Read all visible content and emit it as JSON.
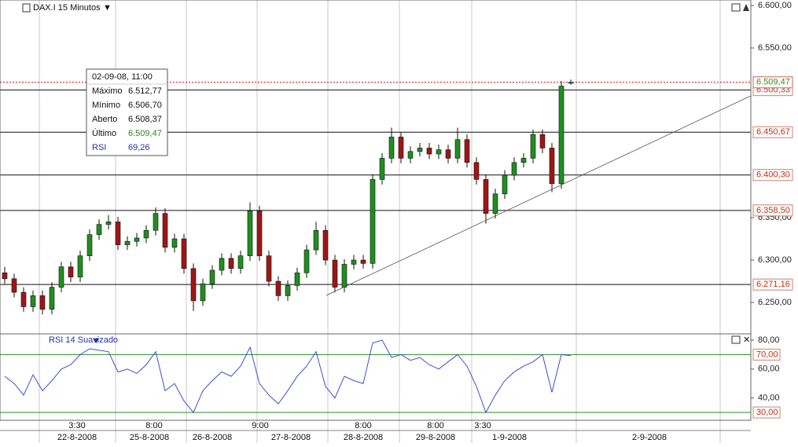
{
  "chart_data": {
    "type": "candlestick",
    "title": "DAX.I 15 Minutos",
    "ylim": [
      6213,
      6606.5
    ],
    "yticks": [
      {
        "value": 6600,
        "label": "6.600,00"
      },
      {
        "value": 6550,
        "label": "6.550,00"
      },
      {
        "value": 6350,
        "label": "6.350,00"
      },
      {
        "value": 6300,
        "label": "6.300,00"
      },
      {
        "value": 6250,
        "label": "6.250,00"
      }
    ],
    "levels": [
      {
        "value": 6500.33,
        "label": "6.500,33"
      },
      {
        "value": 6450.67,
        "label": "6.450,67"
      },
      {
        "value": 6400.3,
        "label": "6.400,30"
      },
      {
        "value": 6358.5,
        "label": "6.358,50"
      },
      {
        "value": 6271.16,
        "label": "6.271,16"
      }
    ],
    "last_price": {
      "value": 6509.47,
      "label": "6.509,47"
    },
    "up_color": "#1f8f1f",
    "down_color": "#a01515",
    "candles": [
      [
        6285,
        6292,
        6272,
        6278
      ],
      [
        6278,
        6284,
        6256,
        6262
      ],
      [
        6262,
        6268,
        6239,
        6245
      ],
      [
        6245,
        6264,
        6239,
        6258
      ],
      [
        6258,
        6264,
        6236,
        6242
      ],
      [
        6242,
        6274,
        6236,
        6268
      ],
      [
        6268,
        6298,
        6262,
        6292
      ],
      [
        6292,
        6298,
        6274,
        6280
      ],
      [
        6280,
        6311,
        6274,
        6305
      ],
      [
        6305,
        6336,
        6299,
        6330
      ],
      [
        6330,
        6348,
        6324,
        6342
      ],
      [
        6342,
        6353,
        6336,
        6345
      ],
      [
        6345,
        6351,
        6312,
        6318
      ],
      [
        6318,
        6328,
        6312,
        6322
      ],
      [
        6322,
        6332,
        6316,
        6326
      ],
      [
        6326,
        6341,
        6320,
        6335
      ],
      [
        6335,
        6362,
        6329,
        6355
      ],
      [
        6355,
        6361,
        6309,
        6315
      ],
      [
        6315,
        6331,
        6309,
        6325
      ],
      [
        6325,
        6331,
        6284,
        6290
      ],
      [
        6290,
        6296,
        6240,
        6252
      ],
      [
        6252,
        6278,
        6246,
        6272
      ],
      [
        6272,
        6294,
        6266,
        6288
      ],
      [
        6288,
        6308,
        6282,
        6302
      ],
      [
        6302,
        6308,
        6284,
        6290
      ],
      [
        6290,
        6311,
        6284,
        6305
      ],
      [
        6305,
        6368,
        6299,
        6358
      ],
      [
        6358,
        6364,
        6299,
        6305
      ],
      [
        6305,
        6311,
        6269,
        6275
      ],
      [
        6275,
        6281,
        6252,
        6258
      ],
      [
        6258,
        6276,
        6252,
        6270
      ],
      [
        6270,
        6291,
        6264,
        6285
      ],
      [
        6285,
        6318,
        6279,
        6312
      ],
      [
        6312,
        6345,
        6306,
        6335
      ],
      [
        6335,
        6341,
        6294,
        6300
      ],
      [
        6300,
        6306,
        6262,
        6268
      ],
      [
        6268,
        6301,
        6262,
        6295
      ],
      [
        6295,
        6306,
        6289,
        6300
      ],
      [
        6300,
        6306,
        6290,
        6296
      ],
      [
        6296,
        6401,
        6290,
        6395
      ],
      [
        6395,
        6426,
        6389,
        6420
      ],
      [
        6420,
        6456,
        6414,
        6445
      ],
      [
        6445,
        6451,
        6414,
        6420
      ],
      [
        6420,
        6434,
        6414,
        6428
      ],
      [
        6428,
        6438,
        6422,
        6432
      ],
      [
        6432,
        6438,
        6419,
        6425
      ],
      [
        6425,
        6436,
        6419,
        6430
      ],
      [
        6430,
        6436,
        6414,
        6420
      ],
      [
        6420,
        6456,
        6414,
        6442
      ],
      [
        6442,
        6448,
        6409,
        6415
      ],
      [
        6415,
        6421,
        6389,
        6395
      ],
      [
        6395,
        6401,
        6343,
        6355
      ],
      [
        6355,
        6384,
        6349,
        6378
      ],
      [
        6378,
        6406,
        6372,
        6400
      ],
      [
        6400,
        6421,
        6394,
        6415
      ],
      [
        6415,
        6426,
        6409,
        6420
      ],
      [
        6420,
        6454,
        6414,
        6448
      ],
      [
        6448,
        6454,
        6426,
        6432
      ],
      [
        6432,
        6438,
        6380,
        6390
      ],
      [
        6390,
        6511,
        6384,
        6505
      ],
      [
        6508.37,
        6512.77,
        6506.7,
        6509.47
      ]
    ],
    "tooltip": {
      "title": "02-09-08, 11:00",
      "rows": [
        [
          "Máximo",
          "6.512,77"
        ],
        [
          "Mínimo",
          "6.506,70"
        ],
        [
          "Aberto",
          "6.508,37"
        ],
        [
          "Último",
          "6.509,47"
        ],
        [
          "RSI",
          "69,26"
        ]
      ]
    },
    "rsi": {
      "title": "RSI 14 Suavizado",
      "color": "#3b4fd0",
      "level_color": "#2a8a2a",
      "ylim": [
        24.6,
        84.3
      ],
      "yticks": [
        {
          "value": 80,
          "label": "80,00"
        },
        {
          "value": 60,
          "label": "60,00"
        },
        {
          "value": 40,
          "label": "40,00"
        }
      ],
      "levels": [
        {
          "value": 70,
          "label": "70,00"
        },
        {
          "value": 30,
          "label": "30,00"
        }
      ],
      "values": [
        55,
        50,
        42,
        56,
        45,
        52,
        60,
        63,
        70,
        74,
        73,
        72,
        58,
        60,
        57,
        63,
        72,
        45,
        50,
        38,
        30,
        45,
        52,
        58,
        55,
        62,
        75,
        50,
        42,
        36,
        45,
        55,
        62,
        72,
        48,
        40,
        55,
        52,
        50,
        78,
        80,
        68,
        70,
        66,
        68,
        63,
        60,
        65,
        70,
        62,
        48,
        30,
        42,
        52,
        58,
        62,
        65,
        70,
        44,
        70,
        69.26
      ]
    },
    "x_time_labels": [
      "3:30",
      "8:00",
      "9:00",
      "8:00",
      "8:00",
      "3:30"
    ],
    "x_date_labels": [
      "22-8-2008",
      "25-8-2008",
      "26-8-2008",
      "27-8-2008",
      "28-8-2008",
      "29-8-2008",
      "1-9-2008",
      "2-9-2008"
    ]
  }
}
